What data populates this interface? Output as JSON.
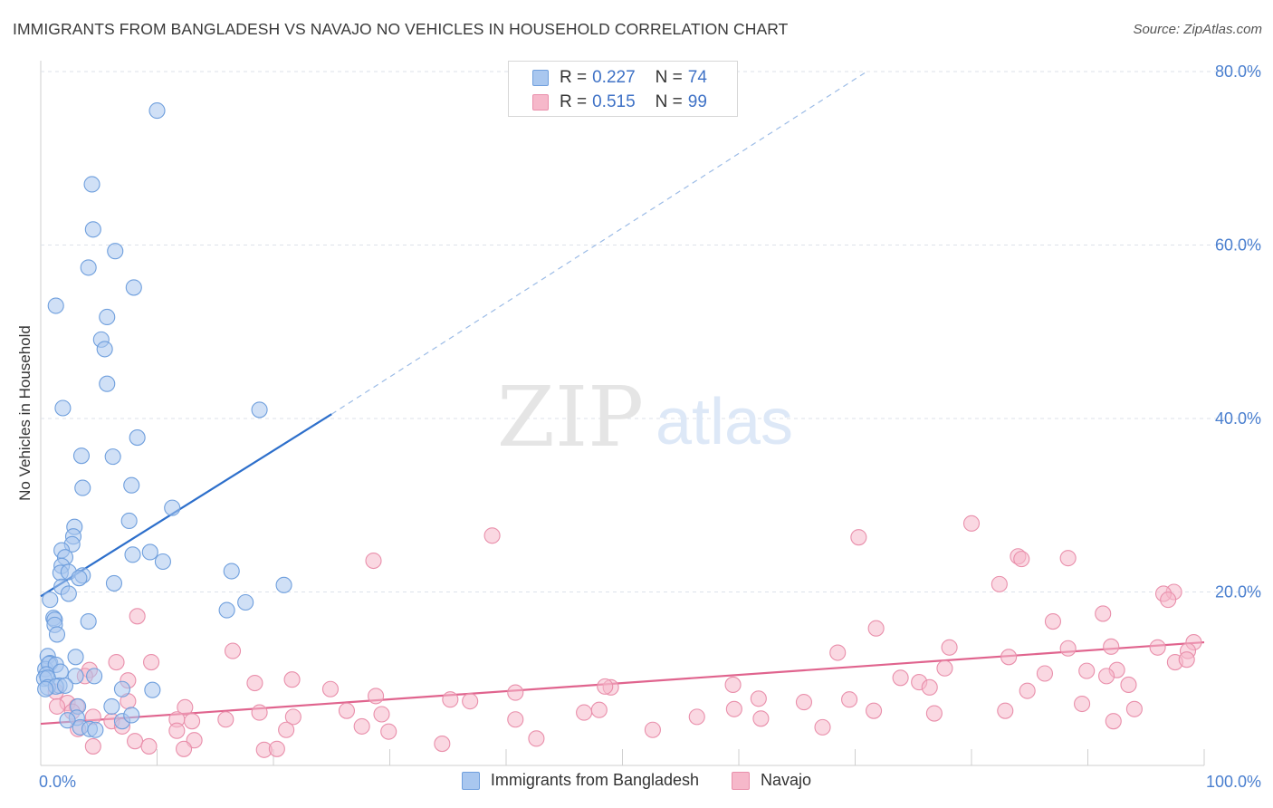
{
  "title": "IMMIGRANTS FROM BANGLADESH VS NAVAJO NO VEHICLES IN HOUSEHOLD CORRELATION CHART",
  "source": "Source: ZipAtlas.com",
  "watermark": {
    "zip": "ZIP",
    "atlas": "atlas"
  },
  "legend_top": [
    {
      "r_label": "R =",
      "r_value": "0.227",
      "n_label": "N =",
      "n_value": "74"
    },
    {
      "r_label": "R =",
      "r_value": "0.515",
      "n_label": "N =",
      "n_value": "99"
    }
  ],
  "legend_bottom": [
    {
      "label": "Immigrants from Bangladesh"
    },
    {
      "label": "Navajo"
    }
  ],
  "colors": {
    "blue_fill": "#a9c7ef",
    "blue_stroke": "#6f9fdd",
    "blue_line": "#2d6fcb",
    "pink_fill": "#f6b8ca",
    "pink_stroke": "#e98fab",
    "pink_line": "#e0648e",
    "tick_label": "#4a7fcf",
    "grid": "#dde2ea"
  },
  "chart_data": {
    "type": "scatter",
    "xlabel": "",
    "ylabel": "No Vehicles in Household",
    "xlim": [
      0,
      100
    ],
    "ylim": [
      0,
      80
    ],
    "x_tick_labels": [
      "0.0%",
      "100.0%"
    ],
    "y_ticks": [
      20,
      40,
      60,
      80
    ],
    "y_tick_labels": [
      "20.0%",
      "40.0%",
      "60.0%",
      "80.0%"
    ],
    "grid": true,
    "series": [
      {
        "name": "Immigrants from Bangladesh",
        "trend": {
          "x": [
            0,
            25
          ],
          "y": [
            19.5,
            40.5
          ],
          "dashed_to": [
            71,
            80
          ]
        },
        "points": [
          [
            10,
            75.5
          ],
          [
            4.4,
            67
          ],
          [
            4.5,
            61.8
          ],
          [
            6.4,
            59.3
          ],
          [
            4.1,
            57.4
          ],
          [
            8,
            55.1
          ],
          [
            1.3,
            53
          ],
          [
            5.7,
            51.7
          ],
          [
            5.2,
            49.1
          ],
          [
            5.5,
            48
          ],
          [
            5.7,
            44
          ],
          [
            1.9,
            41.2
          ],
          [
            18.8,
            41
          ],
          [
            8.3,
            37.8
          ],
          [
            3.5,
            35.7
          ],
          [
            6.2,
            35.6
          ],
          [
            3.6,
            32
          ],
          [
            7.8,
            32.3
          ],
          [
            11.3,
            29.7
          ],
          [
            7.6,
            28.2
          ],
          [
            2.9,
            27.5
          ],
          [
            2.8,
            26.4
          ],
          [
            2.7,
            25.5
          ],
          [
            1.8,
            24.8
          ],
          [
            2.1,
            24
          ],
          [
            9.4,
            24.6
          ],
          [
            7.9,
            24.3
          ],
          [
            10.5,
            23.5
          ],
          [
            1.8,
            23
          ],
          [
            1.7,
            22.2
          ],
          [
            2.4,
            22.3
          ],
          [
            3.6,
            21.9
          ],
          [
            3.3,
            21.6
          ],
          [
            16.4,
            22.4
          ],
          [
            6.3,
            21
          ],
          [
            20.9,
            20.8
          ],
          [
            1.8,
            20.6
          ],
          [
            2.4,
            19.8
          ],
          [
            0.8,
            19.1
          ],
          [
            17.6,
            18.8
          ],
          [
            16,
            17.9
          ],
          [
            1.1,
            17
          ],
          [
            1.2,
            16.8
          ],
          [
            1.2,
            16.2
          ],
          [
            4.1,
            16.6
          ],
          [
            1.4,
            15.1
          ],
          [
            0.6,
            12.6
          ],
          [
            3,
            12.5
          ],
          [
            0.8,
            11.8
          ],
          [
            0.4,
            11.1
          ],
          [
            0.7,
            11.7
          ],
          [
            1.3,
            11.6
          ],
          [
            1.7,
            10.8
          ],
          [
            0.5,
            10.5
          ],
          [
            0.3,
            10
          ],
          [
            0.6,
            10.1
          ],
          [
            4.6,
            10.3
          ],
          [
            3,
            10.3
          ],
          [
            1.6,
            9.2
          ],
          [
            0.6,
            9
          ],
          [
            1.3,
            9.1
          ],
          [
            2.1,
            9.2
          ],
          [
            0.4,
            8.8
          ],
          [
            7,
            8.8
          ],
          [
            9.6,
            8.7
          ],
          [
            3.2,
            6.8
          ],
          [
            6.1,
            6.8
          ],
          [
            3.1,
            5.5
          ],
          [
            2.3,
            5.2
          ],
          [
            7,
            5.1
          ],
          [
            7.8,
            5.8
          ],
          [
            3.4,
            4.4
          ],
          [
            4.2,
            4.2
          ],
          [
            4.7,
            4.1
          ]
        ]
      },
      {
        "name": "Navajo",
        "trend": {
          "x": [
            0,
            100
          ],
          "y": [
            4.8,
            14.2
          ]
        },
        "points": [
          [
            80,
            27.9
          ],
          [
            38.8,
            26.5
          ],
          [
            70.3,
            26.3
          ],
          [
            28.6,
            23.6
          ],
          [
            84,
            24.1
          ],
          [
            84.3,
            23.8
          ],
          [
            88.3,
            23.9
          ],
          [
            82.4,
            20.9
          ],
          [
            97.4,
            20
          ],
          [
            96.5,
            19.8
          ],
          [
            96.9,
            19.1
          ],
          [
            8.3,
            17.2
          ],
          [
            87,
            16.6
          ],
          [
            91.3,
            17.5
          ],
          [
            71.8,
            15.8
          ],
          [
            99.1,
            14.2
          ],
          [
            16.5,
            13.2
          ],
          [
            78.1,
            13.6
          ],
          [
            88.3,
            13.5
          ],
          [
            92,
            13.7
          ],
          [
            96,
            13.6
          ],
          [
            98.6,
            13.2
          ],
          [
            68.5,
            13
          ],
          [
            83.2,
            12.5
          ],
          [
            6.5,
            11.9
          ],
          [
            9.5,
            11.9
          ],
          [
            97.5,
            11.9
          ],
          [
            98.5,
            12.2
          ],
          [
            4.2,
            11
          ],
          [
            77.7,
            11.2
          ],
          [
            89.9,
            10.9
          ],
          [
            92.5,
            11
          ],
          [
            3.8,
            10.3
          ],
          [
            86.3,
            10.6
          ],
          [
            91.6,
            10.3
          ],
          [
            73.9,
            10.1
          ],
          [
            7.5,
            9.8
          ],
          [
            18.4,
            9.5
          ],
          [
            21.6,
            9.9
          ],
          [
            49,
            9
          ],
          [
            59.5,
            9.3
          ],
          [
            75.5,
            9.6
          ],
          [
            24.9,
            8.8
          ],
          [
            48.5,
            9.1
          ],
          [
            1.3,
            8.5
          ],
          [
            84.8,
            8.6
          ],
          [
            76.4,
            9
          ],
          [
            93.5,
            9.3
          ],
          [
            28.8,
            8
          ],
          [
            40.8,
            8.4
          ],
          [
            69.5,
            7.6
          ],
          [
            2.3,
            7.2
          ],
          [
            35.2,
            7.6
          ],
          [
            61.7,
            7.7
          ],
          [
            65.6,
            7.3
          ],
          [
            3.1,
            6.8
          ],
          [
            7.5,
            7.4
          ],
          [
            36.9,
            7.4
          ],
          [
            89.5,
            7.1
          ],
          [
            1.4,
            6.8
          ],
          [
            12.4,
            6.7
          ],
          [
            48,
            6.4
          ],
          [
            76.8,
            6
          ],
          [
            82.9,
            6.3
          ],
          [
            94,
            6.5
          ],
          [
            2.7,
            6.2
          ],
          [
            26.3,
            6.3
          ],
          [
            59.6,
            6.5
          ],
          [
            71.6,
            6.3
          ],
          [
            46.7,
            6.1
          ],
          [
            4.5,
            5.6
          ],
          [
            21.7,
            5.6
          ],
          [
            18.8,
            6.1
          ],
          [
            29.3,
            5.9
          ],
          [
            6.1,
            5.1
          ],
          [
            11.7,
            5.3
          ],
          [
            13,
            5.1
          ],
          [
            15.9,
            5.3
          ],
          [
            40.8,
            5.3
          ],
          [
            56.4,
            5.6
          ],
          [
            61.9,
            5.4
          ],
          [
            92.2,
            5.1
          ],
          [
            3.2,
            4.2
          ],
          [
            7,
            4.5
          ],
          [
            27.6,
            4.5
          ],
          [
            52.6,
            4.1
          ],
          [
            67.2,
            4.4
          ],
          [
            11.7,
            4
          ],
          [
            21.1,
            4.1
          ],
          [
            29.9,
            3.9
          ],
          [
            13.2,
            2.9
          ],
          [
            8.1,
            2.8
          ],
          [
            34.5,
            2.5
          ],
          [
            42.6,
            3.1
          ],
          [
            4.5,
            2.2
          ],
          [
            9.3,
            2.2
          ],
          [
            12.3,
            1.9
          ],
          [
            19.2,
            1.8
          ],
          [
            20.3,
            1.9
          ]
        ]
      }
    ]
  }
}
